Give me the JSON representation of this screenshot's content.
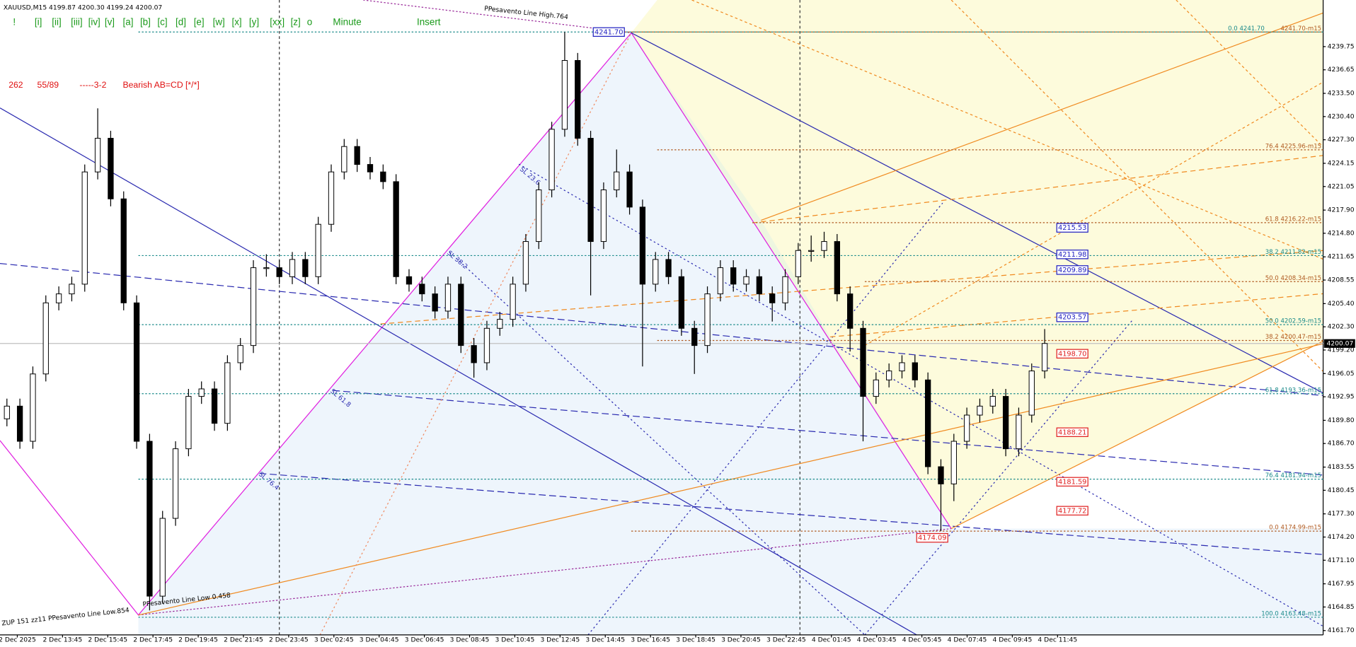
{
  "header": {
    "symbol_info": "XAUUSD,M15  4199.87 4200.30 4199.24 4200.07"
  },
  "toolbar": {
    "buttons": [
      "!",
      "[i]",
      "[ii]",
      "[iii]",
      "[iv]",
      "[v]",
      "[a]",
      "[b]",
      "[c]",
      "[d]",
      "[e]",
      "[w]",
      "[x]",
      "[y]",
      "[xx]",
      "[z]",
      "o",
      "Minute",
      "Insert"
    ]
  },
  "pattern_info": [
    "262",
    "55/89",
    "-----3-2",
    "Bearish AB=CD [*/*]"
  ],
  "annotations": [
    "PPesavento Line High.764",
    "ZUP 151 zz11 PPesavento Line Low.854",
    "PPesavento Line Low 0.458",
    "SL 23.6",
    "SL 38.2",
    "SL 61.8",
    "SL 76.4"
  ],
  "chart_data": {
    "type": "candlestick",
    "x_labels": [
      "2 Dec 2025",
      "2 Dec 13:45",
      "2 Dec 15:45",
      "2 Dec 17:45",
      "2 Dec 19:45",
      "2 Dec 21:45",
      "2 Dec 23:45",
      "3 Dec 02:45",
      "3 Dec 04:45",
      "3 Dec 06:45",
      "3 Dec 08:45",
      "3 Dec 10:45",
      "3 Dec 12:45",
      "3 Dec 14:45",
      "3 Dec 16:45",
      "3 Dec 18:45",
      "3 Dec 20:45",
      "3 Dec 22:45",
      "4 Dec 01:45",
      "4 Dec 03:45",
      "4 Dec 05:45",
      "4 Dec 07:45",
      "4 Dec 09:45",
      "4 Dec 11:45"
    ],
    "open": [
      4190,
      4191.7,
      4187,
      4196,
      4205.5,
      4206.7,
      4208,
      4223,
      4227.5,
      4219.4,
      4205.5,
      4187,
      4166.3,
      4176.7,
      4186,
      4193,
      4194,
      4189.4,
      4197.5,
      4199.8,
      4210.2,
      4210.2,
      4209,
      4211.3,
      4209,
      4216,
      4223,
      4226.4,
      4224,
      4223,
      4221.7,
      4209,
      4208,
      4206.7,
      4204.4,
      4208,
      4199.8,
      4197.5,
      4202.1,
      4203.3,
      4208,
      4213.7,
      4220.6,
      4228.7,
      4237.9,
      4227.5,
      4213.7,
      4220.6,
      4223,
      4218.3,
      4208,
      4211.3,
      4209,
      4202.1,
      4199.8,
      4206.7,
      4210.2,
      4208,
      4209,
      4206.7,
      4205.5,
      4209,
      4212.5,
      4212.5,
      4213.7,
      4206.7,
      4202.1,
      4193,
      4195.2,
      4196.4,
      4197.5,
      4195.2,
      4183.6,
      4181.3,
      4187,
      4190.5,
      4191.7,
      4193,
      4186,
      4190.5,
      4196.4
    ],
    "high": [
      4192.7,
      4192.7,
      4197,
      4206.5,
      4207.7,
      4209,
      4224,
      4231.5,
      4228.5,
      4220.4,
      4206.5,
      4188,
      4177.7,
      4187,
      4194,
      4195,
      4195,
      4198.5,
      4200.8,
      4211.2,
      4212,
      4211.2,
      4212.3,
      4212.3,
      4217,
      4224,
      4227.4,
      4227.4,
      4225,
      4224,
      4222.7,
      4210,
      4209,
      4207.7,
      4209,
      4209,
      4200.8,
      4203.1,
      4204.3,
      4209,
      4214.7,
      4221.6,
      4229.7,
      4241.7,
      4238.9,
      4228.5,
      4221.6,
      4226,
      4224,
      4219.3,
      4212.3,
      4212.3,
      4210,
      4203.1,
      4207.7,
      4211.2,
      4211.2,
      4210,
      4210,
      4207.7,
      4210,
      4213.5,
      4214.5,
      4215,
      4214.7,
      4207.7,
      4203.1,
      4196.2,
      4197.4,
      4198.5,
      4198.5,
      4196.2,
      4184.6,
      4188,
      4191.5,
      4192.7,
      4194,
      4194,
      4191.5,
      4197.4,
      4202
    ],
    "low": [
      4189,
      4186,
      4186,
      4195,
      4204.5,
      4205.7,
      4207,
      4222,
      4218.4,
      4204.5,
      4186,
      4164.4,
      4165.3,
      4175.7,
      4185,
      4192,
      4188.4,
      4188.4,
      4196.5,
      4198.8,
      4209,
      4208,
      4208,
      4208,
      4208,
      4215,
      4222,
      4223,
      4222,
      4220.7,
      4208,
      4207,
      4205.7,
      4203.4,
      4203.4,
      4198.8,
      4195.5,
      4196.5,
      4201.1,
      4202.3,
      4207,
      4212.7,
      4219.6,
      4227.7,
      4226.5,
      4206.5,
      4212.7,
      4219.6,
      4217.3,
      4197,
      4207,
      4208,
      4201.1,
      4196,
      4198.8,
      4205.7,
      4207,
      4207,
      4205.7,
      4203,
      4204.5,
      4208,
      4211,
      4211.5,
      4205.7,
      4199,
      4187,
      4192,
      4194.2,
      4195.4,
      4194.2,
      4182.6,
      4175,
      4179,
      4186,
      4189.5,
      4190.7,
      4185,
      4185,
      4189.5,
      4195.4
    ],
    "close": [
      4191.7,
      4187,
      4196,
      4205.5,
      4206.7,
      4208,
      4223,
      4227.5,
      4219.4,
      4205.5,
      4187,
      4166.3,
      4176.7,
      4186,
      4193,
      4194,
      4189.4,
      4197.5,
      4199.8,
      4210.2,
      4210.2,
      4209,
      4211.3,
      4209,
      4216,
      4223,
      4226.4,
      4224,
      4223,
      4221.7,
      4209,
      4208,
      4206.7,
      4204.4,
      4208,
      4199.8,
      4197.5,
      4202.1,
      4203.3,
      4208,
      4213.7,
      4220.6,
      4228.7,
      4237.9,
      4227.5,
      4213.7,
      4220.6,
      4223,
      4218.3,
      4208,
      4211.3,
      4209,
      4202.1,
      4199.8,
      4206.7,
      4210.2,
      4208,
      4209,
      4206.7,
      4205.5,
      4209,
      4212.5,
      4212.5,
      4213.7,
      4206.7,
      4202.1,
      4193,
      4195.2,
      4196.4,
      4197.5,
      4195.2,
      4183.6,
      4181.3,
      4187,
      4190.5,
      4191.7,
      4193,
      4186,
      4190.5,
      4196.4,
      4200.07
    ],
    "ylim": [
      4161.12,
      4245.98
    ],
    "yticks": [
      4239.75,
      4236.65,
      {
        "value": 4233.5,
        "label": "4233.50"
      },
      {
        "value": 4230.4,
        "label": "4230.40"
      },
      {
        "value": 4227.3,
        "label": "4227.30"
      },
      4224.15,
      4221.05,
      {
        "value": 4217.9,
        "label": "4217.90"
      },
      {
        "value": 4214.8,
        "label": "4214.80"
      },
      4211.65,
      4208.55,
      {
        "value": 4205.4,
        "label": "4205.40"
      },
      {
        "value": 4202.3,
        "label": "4202.30"
      },
      {
        "value": 4199.2,
        "label": "4199.20"
      },
      4196.05,
      4192.95,
      {
        "value": 4189.8,
        "label": "4189.80"
      },
      {
        "value": 4186.7,
        "label": "4186.70"
      },
      4183.55,
      4180.45,
      {
        "value": 4177.3,
        "label": "4177.30"
      },
      {
        "value": 4174.2,
        "label": "4174.20"
      },
      {
        "value": 4171.1,
        "label": "4171.10"
      },
      4167.95,
      4164.85,
      {
        "value": 4161.7,
        "label": "4161.70"
      }
    ],
    "current_price": {
      "value": 4200.07,
      "label": "4200.07"
    },
    "price_tags": [
      {
        "value": 4241.7,
        "label": "4241.70",
        "color": "#2020c0"
      },
      {
        "value": 4215.53,
        "label": "4215.53",
        "color": "#2020c0"
      },
      {
        "value": 4211.98,
        "label": "4211.98",
        "color": "#2020c0"
      },
      {
        "value": 4209.89,
        "label": "4209.89",
        "color": "#2020c0"
      },
      {
        "value": 4203.57,
        "label": "4203.57",
        "color": "#2020c0"
      },
      {
        "value": 4198.7,
        "label": "4198.70",
        "color": "#e02020"
      },
      {
        "value": 4188.21,
        "label": "4188.21",
        "color": "#e02020"
      },
      {
        "value": 4181.59,
        "label": "4181.59",
        "color": "#e02020"
      },
      {
        "value": 4177.72,
        "label": "4177.72",
        "color": "#e02020"
      },
      {
        "value": 4174.09,
        "label": "4174.09",
        "color": "#e02020"
      }
    ],
    "fib_levels": [
      {
        "value": 4241.7,
        "label": "0.0  4241.70",
        "color": "#1a8a8a"
      },
      {
        "value": 4241.7,
        "label": "4241.70-m15",
        "color": "#b05a20"
      },
      {
        "value": 4225.96,
        "label": "76.4  4225.96-m15",
        "color": "#b05a20"
      },
      {
        "value": 4216.22,
        "label": "61.8  4216.22-m15",
        "color": "#b05a20"
      },
      {
        "value": 4211.82,
        "label": "38.2  4211.82-m15",
        "color": "#1a8a8a"
      },
      {
        "value": 4208.34,
        "label": "50.0  4208.34-m15",
        "color": "#b05a20"
      },
      {
        "value": 4202.59,
        "label": "50.0  4202.59-m15",
        "color": "#1a8a8a"
      },
      {
        "value": 4200.47,
        "label": "38.2  4200.47-m15",
        "color": "#b05a20"
      },
      {
        "value": 4193.36,
        "label": "61.8  4193.36-m15",
        "color": "#1a8a8a"
      },
      {
        "value": 4181.94,
        "label": "76.4  4181.94-m15",
        "color": "#1a8a8a"
      },
      {
        "value": 4174.99,
        "label": "0.0  4174.99-m15",
        "color": "#b05a20"
      },
      {
        "value": 4163.48,
        "label": "100.0  4163.48-m15",
        "color": "#1a8a8a"
      }
    ]
  }
}
